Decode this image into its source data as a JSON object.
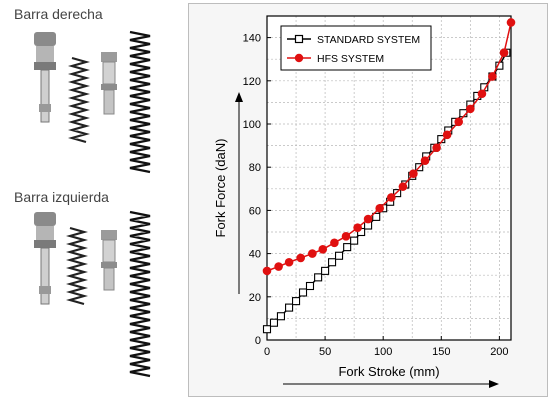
{
  "left_panel": {
    "right_bar_label": "Barra derecha",
    "left_bar_label": "Barra izquierda"
  },
  "chart_data": {
    "type": "line",
    "xlabel": "Fork Stroke (mm)",
    "ylabel": "Fork Force (daN)",
    "xlim": [
      0,
      210
    ],
    "ylim": [
      0,
      150
    ],
    "xticks": [
      0,
      50,
      100,
      150,
      200
    ],
    "yticks": [
      0,
      20,
      40,
      60,
      80,
      100,
      120,
      140
    ],
    "grid": true,
    "legend_position": "top-left",
    "series": [
      {
        "name": "STANDARD SYSTEM",
        "color": "#000000",
        "marker": "open-square",
        "x": [
          0,
          6,
          12,
          19,
          25,
          31,
          37,
          44,
          50,
          56,
          62,
          69,
          75,
          81,
          87,
          94,
          100,
          106,
          112,
          119,
          125,
          131,
          137,
          144,
          150,
          156,
          162,
          169,
          175,
          181,
          187,
          194,
          200,
          206
        ],
        "y": [
          5,
          8,
          11,
          15,
          18,
          22,
          25,
          29,
          32,
          36,
          39,
          43,
          46,
          50,
          53,
          57,
          61,
          64,
          68,
          72,
          76,
          80,
          85,
          89,
          93,
          97,
          101,
          105,
          109,
          113,
          117,
          122,
          127,
          133
        ]
      },
      {
        "name": "HFS SYSTEM",
        "color": "#e01010",
        "marker": "filled-circle",
        "x": [
          0,
          10,
          19,
          29,
          39,
          48,
          58,
          68,
          78,
          87,
          97,
          107,
          117,
          126,
          136,
          146,
          155,
          165,
          175,
          185,
          194,
          204,
          210
        ],
        "y": [
          32,
          34,
          36,
          38,
          40,
          42,
          45,
          48,
          52,
          56,
          61,
          66,
          71,
          77,
          83,
          89,
          95,
          101,
          107,
          114,
          122,
          133,
          147
        ]
      }
    ]
  },
  "icons": {
    "parts_top": "fork-cartridge-parts-icon",
    "parts_bottom": "fork-cartridge-parts-icon"
  }
}
